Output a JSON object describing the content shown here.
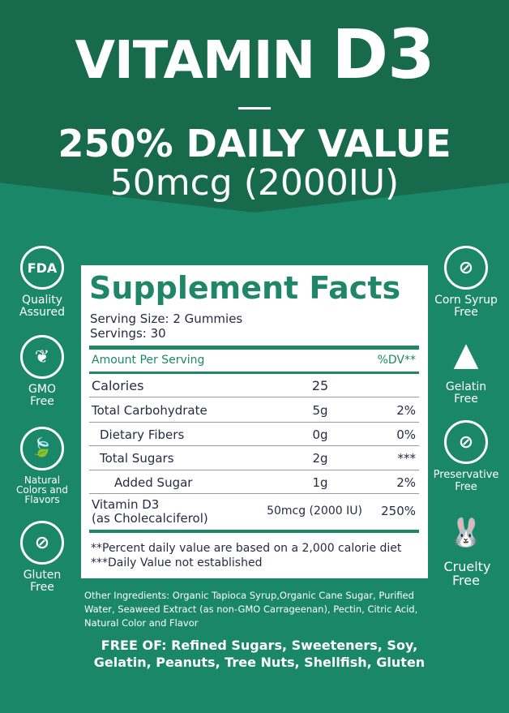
{
  "header": {
    "title_word": "VITAMIN",
    "title_code": "D3",
    "daily_value": "250% DAILY VALUE",
    "dose": "50mcg (2000IU)"
  },
  "left_badges": [
    {
      "icon": "fda-seal-icon",
      "icon_text": "FDA",
      "label": "Quality Assured"
    },
    {
      "icon": "plant-icon",
      "icon_text": "❦",
      "label": "GMO Free"
    },
    {
      "icon": "leaf-icon",
      "icon_text": "🍃",
      "label": "Natural Colors and Flavors"
    },
    {
      "icon": "no-wheat-icon",
      "icon_text": "⊘",
      "label": "Gluten Free"
    }
  ],
  "right_badges": [
    {
      "icon": "no-corn-icon",
      "icon_text": "⊘",
      "label": "Corn Syrup Free"
    },
    {
      "icon": "gelatin-icon",
      "icon_text": "▲",
      "label": "Gelatin Free"
    },
    {
      "icon": "no-preservative-icon",
      "icon_text": "⊘",
      "label": "Preservative Free"
    },
    {
      "icon": "bunny-icon",
      "icon_text": "🐰",
      "label": "Cruelty Free"
    }
  ],
  "facts": {
    "title": "Supplement Facts",
    "serving_size": "Serving Size: 2 Gummies",
    "servings": "Servings: 30",
    "header_amount": "Amount Per Serving",
    "header_dv": "%DV**",
    "rows": [
      {
        "name": "Calories",
        "amount": "25",
        "dv": ""
      },
      {
        "name": "Total Carbohydrate",
        "amount": "5g",
        "dv": "2%"
      },
      {
        "name": "Dietary Fibers",
        "amount": "0g",
        "dv": "0%"
      },
      {
        "name": "Total Sugars",
        "amount": "2g",
        "dv": "***"
      },
      {
        "name": "Added Sugar",
        "amount": "1g",
        "dv": "2%"
      },
      {
        "name": "Vitamin D3",
        "sub": "(as Cholecalciferol)",
        "amount": "50mcg (2000 IU)",
        "dv": "250%"
      }
    ],
    "footnote1": "**Percent daily value are based on a 2,000 calorie diet",
    "footnote2": "***Daily Value not established"
  },
  "ingredients": "Other Ingredients: Organic Tapioca Syrup,Organic Cane Sugar, Purified Water, Seaweed Extract (as non-GMO Carrageenan), Pectin, Citric Acid, Natural Color and Flavor",
  "free_of": "FREE OF: Refined Sugars, Sweeteners, Soy, Gelatin, Peanuts, Tree Nuts, Shellfish, Gluten",
  "colors": {
    "dark_green": "#176a4c",
    "green": "#1b8769",
    "accent": "#1f8766",
    "text": "#2a2a44"
  }
}
